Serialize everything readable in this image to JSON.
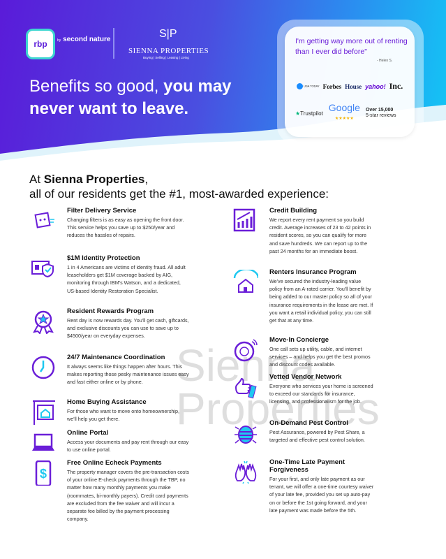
{
  "header": {
    "rbp_logo": "rbp",
    "rbp_by": "by",
    "rbp_brand": "second nature",
    "company_name": "SIENNA PROPERTIES",
    "company_tagline": "Buying | Selling | Leasing | Living",
    "company_monogram": "S|P",
    "headline_regular": "Benefits so good, ",
    "headline_bold_1": "you may",
    "headline_bold_2": "never want to leave."
  },
  "testimonial": {
    "quote": "I'm getting way more out of renting than I ever did before\"",
    "author": "- Helen S.",
    "press": [
      "USA TODAY",
      "Forbes",
      "House",
      "yahoo!",
      "Inc."
    ],
    "trustpilot": "Trustpilot",
    "google": "Google",
    "google_stars": "★★★★★",
    "review_count": "Over 15,000",
    "review_label": "5-star reviews"
  },
  "section": {
    "line1_prefix": "At ",
    "company": "Sienna Properties",
    "line1_suffix": ",",
    "line2": "all of our residents get the #1, most-awarded experience:"
  },
  "watermark": "Sienna Properties",
  "benefits_left": [
    {
      "title": "Filter Delivery Service",
      "text": "Changing filters is as easy as opening the front door. This service helps you save up to $250/year and reduces the hassles of repairs.",
      "icon": "filter-box-icon"
    },
    {
      "title": "$1M Identity Protection",
      "text": "1 in 4 Americans are victims of identity fraud. All adult leaseholders get $1M coverage backed by AIG, monitoring through IBM's Watson, and a dedicated, US-based Identity Restoration Specialist.",
      "icon": "id-shield-icon"
    },
    {
      "title": "Resident Rewards Program",
      "text": "Rent day is now rewards day. You'll get cash, giftcards, and exclusive discounts you can use to save up to $4500/year on everyday expenses.",
      "icon": "award-ribbon-icon"
    },
    {
      "title": "24/7 Maintenance Coordination",
      "text": "It always seems like things happen after hours. This makes reporting those pesky maintenance issues easy and fast either online or by phone.",
      "icon": "clock-icon"
    },
    {
      "title": "Home Buying Assistance",
      "text": "For those who want to move onto homeownership, we'll help you get there.",
      "icon": "home-sign-icon"
    },
    {
      "title": "Online Portal",
      "text": "Access your documents and pay rent through our easy to use online portal.",
      "icon": "laptop-icon"
    },
    {
      "title": "Free Online Echeck Payments",
      "text": "The property manager covers the pre-transaction costs of your online E-check payments through the TBP, no matter how many monthly payments you make (roommates, bi-monthly payers). Credit card payments are excluded from the fee waiver and will incur a separate fee billed by the payment processing company.",
      "icon": "phone-dollar-icon"
    }
  ],
  "benefits_right": [
    {
      "title": "Credit Building",
      "text": "We report every rent payment so you build credit. Average increases of 23 to 42 points in resident scores, so you can qualify for more and save hundreds. We can report up to the past 24 months for an immediate boost.",
      "icon": "chart-growth-icon"
    },
    {
      "title": "Renters Insurance Program",
      "text": "We've secured the industry-leading value policy from an A-rated carrier. You'll benefit by being added to our master policy so all of your insurance requirements in the lease are met. If you want a retail individual policy, you can still get that at any time.",
      "icon": "house-umbrella-icon"
    },
    {
      "title": "Move-In Concierge",
      "text": "One call sets up utility, cable, and internet services – and helps you get the best promos and discount codes available.",
      "icon": "concierge-dial-icon"
    },
    {
      "title": "Vetted Vendor Network",
      "text": "Everyone who services your home is screened to exceed our standards for insurance, licensing, and professionalism for the job.",
      "icon": "thumbs-up-icon"
    },
    {
      "title": "On-Demand Pest Control",
      "text": "Pest Assurance, powered by Pest Share, a targeted and effective pest control solution.",
      "icon": "bug-icon"
    },
    {
      "title": "One-Time Late Payment Forgiveness",
      "text": "For your first, and only late payment as our tenant, we will offer a one-time courtesy waiver of your late fee, provided you set up auto-pay on or before the 1st going forward, and your late payment was made before the 5th.",
      "icon": "high-five-icon"
    }
  ],
  "colors": {
    "purple": "#6a1ed8",
    "cyan": "#1ec8f0",
    "text": "#333333"
  }
}
